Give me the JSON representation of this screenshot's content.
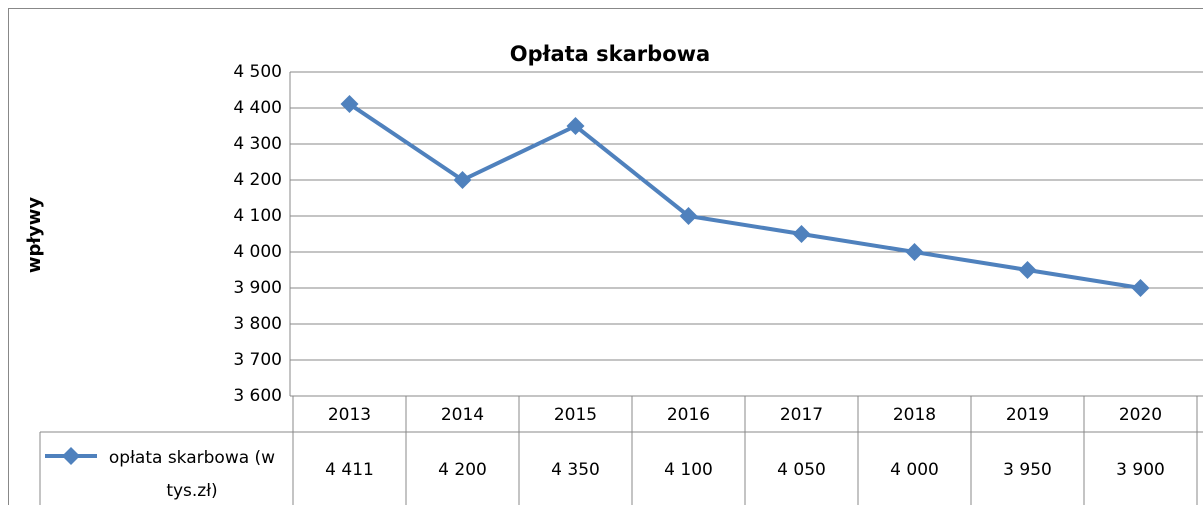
{
  "chart_data": {
    "type": "line",
    "title": "Opłata skarbowa",
    "y_label": "wpływy",
    "categories": [
      "2013",
      "2014",
      "2015",
      "2016",
      "2017",
      "2018",
      "2019",
      "2020"
    ],
    "series": [
      {
        "name": "opłata skarbowa (w tys.zł)",
        "color": "#4f81bd",
        "values": [
          4411,
          4200,
          4350,
          4100,
          4050,
          4000,
          3950,
          3900
        ],
        "value_labels": [
          "4 411",
          "4 200",
          "4 350",
          "4 100",
          "4 050",
          "4 000",
          "3 950",
          "3 900"
        ]
      }
    ],
    "ylim": [
      3600,
      4500
    ],
    "yticks": [
      {
        "value": 3600,
        "label": "3 600"
      },
      {
        "value": 3700,
        "label": "3 700"
      },
      {
        "value": 3800,
        "label": "3 800"
      },
      {
        "value": 3900,
        "label": "3 900"
      },
      {
        "value": 4000,
        "label": "4 000"
      },
      {
        "value": 4100,
        "label": "4 100"
      },
      {
        "value": 4200,
        "label": "4 200"
      },
      {
        "value": 4300,
        "label": "4 300"
      },
      {
        "value": 4400,
        "label": "4 400"
      },
      {
        "value": 4500,
        "label": "4 500"
      }
    ],
    "grid": true,
    "data_table": true
  }
}
